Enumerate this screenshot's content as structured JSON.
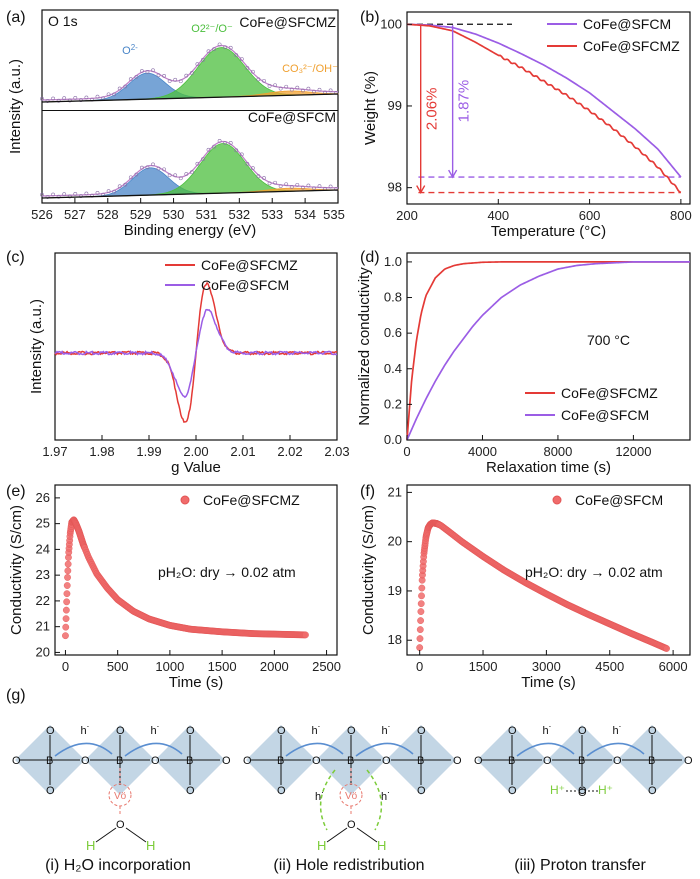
{
  "panels": [
    {
      "id": "a",
      "label": "(a)",
      "type": "xps",
      "title": "O 1s",
      "xlabel": "Binding energy (eV)",
      "ylabel": "Intensity (a.u.)",
      "xlim": [
        526,
        535
      ],
      "xticks": [
        526,
        527,
        528,
        529,
        530,
        531,
        532,
        533,
        534
      ],
      "species": [
        "O2-",
        "O2²⁻/O⁻",
        "CO₃²⁻/OH⁻"
      ],
      "species_colors": [
        "#4a86c8",
        "#4cbf3e",
        "#f0a030"
      ],
      "spectra": [
        {
          "name": "CoFe@SFCMZ",
          "peaks": [
            {
              "center": 529.2,
              "height": 0.42,
              "width": 0.55
            },
            {
              "center": 531.45,
              "height": 0.8,
              "width": 0.72
            },
            {
              "center": 533.5,
              "height": 0.07,
              "width": 0.65
            }
          ]
        },
        {
          "name": "CoFe@SFCM",
          "peaks": [
            {
              "center": 529.3,
              "height": 0.44,
              "width": 0.55
            },
            {
              "center": 531.5,
              "height": 0.8,
              "width": 0.68
            },
            {
              "center": 533.5,
              "height": 0.05,
              "width": 0.65
            }
          ]
        }
      ]
    },
    {
      "id": "b",
      "label": "(b)",
      "type": "line",
      "xlabel": "Temperature (°C)",
      "ylabel": "Weight (%)",
      "xlim": [
        200,
        820
      ],
      "ylim": [
        97.8,
        100.15
      ],
      "xticks": [
        200,
        400,
        600,
        800
      ],
      "yticks": [
        98,
        99,
        100
      ],
      "series": [
        {
          "name": "CoFe@SFCM",
          "color": "#9b5de5",
          "x": [
            200,
            250,
            300,
            350,
            400,
            450,
            500,
            550,
            600,
            650,
            700,
            750,
            800
          ],
          "y": [
            100.0,
            99.99,
            99.96,
            99.88,
            99.77,
            99.64,
            99.5,
            99.34,
            99.16,
            98.94,
            98.72,
            98.47,
            98.13
          ]
        },
        {
          "name": "CoFe@SFCMZ",
          "color": "#e43a36",
          "x": [
            200,
            250,
            300,
            350,
            400,
            450,
            500,
            550,
            600,
            650,
            700,
            750,
            800
          ],
          "y": [
            100.0,
            99.98,
            99.92,
            99.78,
            99.62,
            99.47,
            99.3,
            99.13,
            98.94,
            98.73,
            98.5,
            98.25,
            97.94
          ]
        }
      ],
      "annotations": [
        {
          "text": "2.06%",
          "color": "#e43a36",
          "x": 230,
          "top": 99.99,
          "bottom": 97.94
        },
        {
          "text": "1.87%",
          "color": "#9b5de5",
          "x": 300,
          "top": 99.99,
          "bottom": 98.13
        }
      ],
      "reference_lines": [
        {
          "y": 100.0,
          "color": "#111111",
          "x": [
            200,
            430
          ]
        },
        {
          "y": 98.13,
          "color": "#9b5de5",
          "x": [
            225,
            800
          ]
        },
        {
          "y": 97.94,
          "color": "#e43a36",
          "x": [
            225,
            800
          ]
        }
      ]
    },
    {
      "id": "c",
      "label": "(c)",
      "type": "epr",
      "xlabel": "g Value",
      "ylabel": "Intensity (a.u.)",
      "xlim": [
        1.97,
        2.03
      ],
      "xticks": [
        1.97,
        1.98,
        1.99,
        2.0,
        2.01,
        2.02,
        2.03
      ],
      "series": [
        {
          "name": "CoFe@SFCMZ",
          "color": "#e43a36",
          "g0": 2.0,
          "amplitude": 1.0,
          "width": 0.0023
        },
        {
          "name": "CoFe@SFCM",
          "color": "#9b5de5",
          "g0": 2.0,
          "amplitude": 0.61,
          "width": 0.0025
        }
      ]
    },
    {
      "id": "d",
      "label": "(d)",
      "type": "line",
      "xlabel": "Relaxation time (s)",
      "ylabel": "Normalized conductivity",
      "xlim": [
        0,
        15000
      ],
      "ylim": [
        0,
        1.05
      ],
      "xticks": [
        0,
        4000,
        8000,
        12000
      ],
      "yticks": [
        0.0,
        0.2,
        0.4,
        0.6,
        0.8,
        1.0
      ],
      "annotation": "700 °C",
      "series": [
        {
          "name": "CoFe@SFCMZ",
          "color": "#e43a36",
          "x": [
            0,
            250,
            500,
            750,
            1000,
            1500,
            2000,
            2500,
            3000,
            4000,
            5000,
            6000,
            8000,
            10000,
            12000,
            15000
          ],
          "y": [
            0,
            0.34,
            0.56,
            0.71,
            0.81,
            0.91,
            0.96,
            0.98,
            0.99,
            0.998,
            1.0,
            1.0,
            1.0,
            1.0,
            1.0,
            1.0
          ]
        },
        {
          "name": "CoFe@SFCM",
          "color": "#9b5de5",
          "x": [
            0,
            500,
            1000,
            1500,
            2000,
            2500,
            3000,
            3500,
            4000,
            5000,
            6000,
            7000,
            8000,
            9000,
            10000,
            12000,
            15000
          ],
          "y": [
            0,
            0.12,
            0.23,
            0.33,
            0.42,
            0.5,
            0.57,
            0.64,
            0.7,
            0.8,
            0.87,
            0.92,
            0.96,
            0.98,
            0.99,
            1.0,
            1.0
          ]
        }
      ]
    },
    {
      "id": "e",
      "label": "(e)",
      "type": "scatter",
      "xlabel": "Time (s)",
      "ylabel": "Conductivity (S/cm)",
      "xlim": [
        -100,
        2600
      ],
      "ylim": [
        19.9,
        26.5
      ],
      "xticks": [
        0,
        500,
        1000,
        1500,
        2000,
        2500
      ],
      "yticks": [
        20,
        21,
        22,
        23,
        24,
        25,
        26
      ],
      "legend": "CoFe@SFCMZ",
      "annotation": "pH₂O: dry → 0.02 atm",
      "series": [
        {
          "name": "CoFe@SFCMZ",
          "color": "#f06b6b",
          "x": [
            0,
            10,
            20,
            30,
            45,
            60,
            80,
            100,
            130,
            170,
            220,
            300,
            400,
            500,
            650,
            800,
            1000,
            1200,
            1500,
            1800,
            2100,
            2300
          ],
          "y": [
            20.65,
            21.8,
            22.9,
            23.8,
            24.6,
            25.05,
            25.15,
            25.0,
            24.7,
            24.2,
            23.7,
            23.05,
            22.5,
            22.05,
            21.6,
            21.3,
            21.05,
            20.9,
            20.8,
            20.73,
            20.7,
            20.68
          ]
        }
      ]
    },
    {
      "id": "f",
      "label": "(f)",
      "type": "scatter",
      "xlabel": "Time (s)",
      "ylabel": "Conductivity (S/cm)",
      "xlim": [
        -300,
        6400
      ],
      "ylim": [
        17.7,
        21.15
      ],
      "xticks": [
        0,
        1500,
        3000,
        4500,
        6000
      ],
      "yticks": [
        18,
        19,
        20,
        21
      ],
      "legend": "CoFe@SFCM",
      "annotation": "pH₂O: dry → 0.02 atm",
      "series": [
        {
          "name": "CoFe@SFCM",
          "color": "#f06b6b",
          "x": [
            0,
            30,
            60,
            100,
            150,
            200,
            250,
            300,
            400,
            500,
            700,
            1000,
            1500,
            2000,
            2500,
            3000,
            3500,
            4000,
            4500,
            5000,
            5500,
            5850
          ],
          "y": [
            17.85,
            18.6,
            19.25,
            19.75,
            20.1,
            20.28,
            20.35,
            20.38,
            20.37,
            20.33,
            20.2,
            20.0,
            19.7,
            19.42,
            19.17,
            18.94,
            18.72,
            18.52,
            18.33,
            18.14,
            17.96,
            17.83
          ]
        }
      ]
    }
  ],
  "schematic": {
    "label": "(g)",
    "atom_B": "B",
    "atom_O": "O",
    "atom_H": "H",
    "hole": "h˙",
    "vacancy": "Vö",
    "steps": [
      {
        "caption": "(i) H₂O incorporation"
      },
      {
        "caption": "(ii) Hole redistribution"
      },
      {
        "caption": "(iii) Proton transfer"
      }
    ],
    "proton": "H⁺",
    "colors": {
      "octahedron": "#b8cfe0",
      "hole": "#5a8ed0",
      "vacancy": "#e8786e",
      "proton": "#7ccc3a"
    }
  }
}
